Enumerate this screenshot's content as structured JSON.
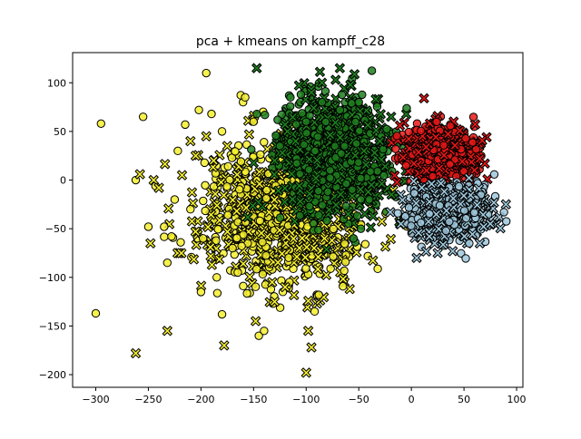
{
  "chart_data": {
    "type": "scatter",
    "title": "pca + kmeans on kampff_c28",
    "xlabel": "",
    "ylabel": "",
    "xlim": [
      -322,
      106
    ],
    "ylim": [
      -213,
      131
    ],
    "xticks": [
      -300,
      -250,
      -200,
      -150,
      -100,
      -50,
      0,
      50,
      100
    ],
    "yticks": [
      -200,
      -150,
      -100,
      -50,
      0,
      50,
      100
    ],
    "grid": false,
    "legend": "none",
    "clusters": [
      {
        "color": "#f4ee2e",
        "center": [
          -125,
          -35
        ],
        "spread": [
          38,
          35
        ],
        "count": 900,
        "outliers": [
          [
            -195,
            110
          ],
          [
            -300,
            -137
          ],
          [
            -295,
            58
          ],
          [
            -262,
            0
          ],
          [
            -255,
            65
          ],
          [
            -250,
            -48
          ],
          [
            -248,
            -65
          ],
          [
            -245,
            0
          ],
          [
            -232,
            -85
          ],
          [
            -232,
            -155
          ],
          [
            -225,
            -20
          ],
          [
            -218,
            5
          ],
          [
            -210,
            -30
          ],
          [
            -200,
            -115
          ],
          [
            -198,
            -60
          ],
          [
            -190,
            68
          ],
          [
            -185,
            -100
          ],
          [
            -180,
            -138
          ],
          [
            -178,
            -170
          ],
          [
            -165,
            -95
          ],
          [
            -148,
            -145
          ],
          [
            -145,
            -160
          ],
          [
            -140,
            -155
          ],
          [
            -130,
            -125
          ],
          [
            -120,
            -110
          ],
          [
            -100,
            -198
          ],
          [
            -98,
            -155
          ],
          [
            -95,
            -172
          ],
          [
            -92,
            -135
          ],
          [
            -88,
            -118
          ],
          [
            -262,
            -178
          ],
          [
            -258,
            6
          ],
          [
            -240,
            -8
          ],
          [
            -235,
            -48
          ],
          [
            -228,
            -58
          ],
          [
            -222,
            30
          ],
          [
            -215,
            57
          ],
          [
            -210,
            40
          ],
          [
            -205,
            25
          ],
          [
            -202,
            72
          ],
          [
            -195,
            45
          ],
          [
            -188,
            20
          ],
          [
            -180,
            50
          ],
          [
            -175,
            35
          ],
          [
            -170,
            -70
          ],
          [
            -160,
            80
          ],
          [
            -150,
            60
          ],
          [
            -158,
            85
          ]
        ]
      },
      {
        "color": "#1f7f1f",
        "center": [
          -72,
          25
        ],
        "spread": [
          26,
          30
        ],
        "count": 1100,
        "outliers": [
          [
            -147,
            115
          ],
          [
            -120,
            57
          ],
          [
            -115,
            85
          ],
          [
            -105,
            88
          ],
          [
            -95,
            90
          ],
          [
            -85,
            100
          ],
          [
            -72,
            103
          ],
          [
            -58,
            98
          ],
          [
            -50,
            80
          ],
          [
            -45,
            30
          ],
          [
            -38,
            -5
          ],
          [
            -40,
            -20
          ],
          [
            -35,
            28
          ],
          [
            -30,
            40
          ],
          [
            -48,
            -50
          ],
          [
            -55,
            -60
          ],
          [
            -60,
            -35
          ],
          [
            -100,
            60
          ],
          [
            -85,
            80
          ],
          [
            -68,
            115
          ],
          [
            -125,
            35
          ],
          [
            -130,
            20
          ],
          [
            -110,
            40
          ]
        ]
      },
      {
        "color": "#e81717",
        "center": [
          28,
          28
        ],
        "spread": [
          17,
          13
        ],
        "count": 700,
        "outliers": [
          [
            -15,
            32
          ],
          [
            12,
            84
          ],
          [
            60,
            10
          ],
          [
            65,
            22
          ],
          [
            -5,
            15
          ]
        ]
      },
      {
        "color": "#9fc8dc",
        "center": [
          35,
          -30
        ],
        "spread": [
          18,
          14
        ],
        "count": 750,
        "outliers": [
          [
            88,
            -33
          ],
          [
            -20,
            -33
          ],
          [
            5,
            -80
          ],
          [
            25,
            -75
          ],
          [
            75,
            -45
          ],
          [
            65,
            -65
          ],
          [
            55,
            -65
          ],
          [
            -10,
            -45
          ]
        ]
      }
    ]
  }
}
